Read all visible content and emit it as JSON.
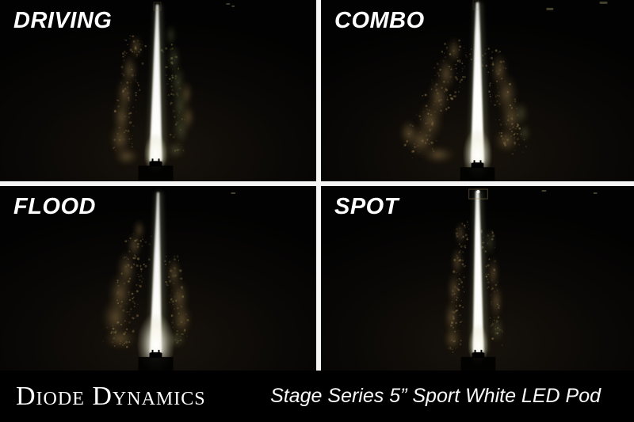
{
  "panels": [
    {
      "id": "driving",
      "label": "DRIVING"
    },
    {
      "id": "combo",
      "label": "COMBO"
    },
    {
      "id": "flood",
      "label": "FLOOD"
    },
    {
      "id": "spot",
      "label": "SPOT"
    }
  ],
  "footer": {
    "brand": "Diode Dynamics",
    "tagline": "Stage Series 5” Sport White LED Pod"
  },
  "colors": {
    "background": "#000000",
    "divider": "#f5f5f5",
    "label_text": "#ffffff",
    "footer_background": "#000000",
    "footer_text": "#fdfdfd",
    "beam_white": "#ffffff",
    "vegetation_tan": "#8d7549",
    "vegetation_olive": "#77713f"
  }
}
